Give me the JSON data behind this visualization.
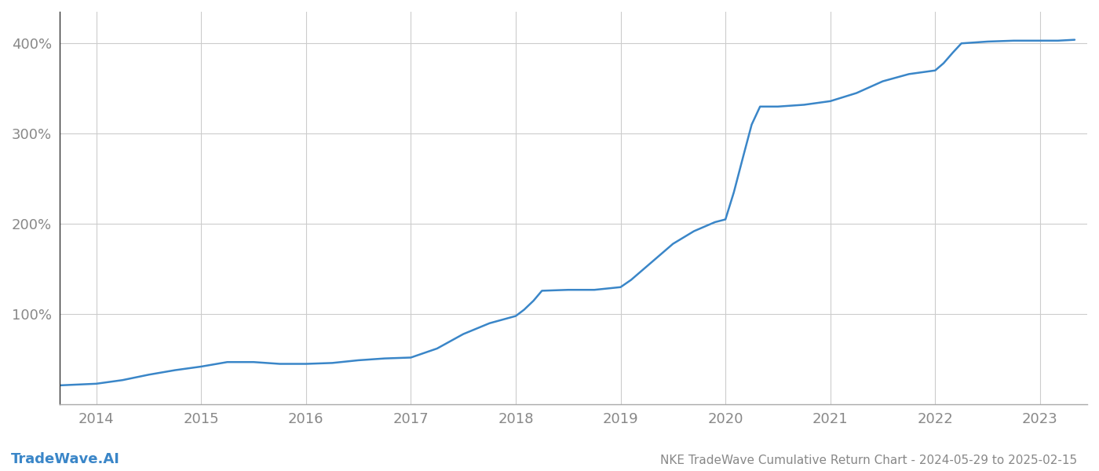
{
  "title": "NKE TradeWave Cumulative Return Chart - 2024-05-29 to 2025-02-15",
  "watermark": "TradeWave.AI",
  "line_color": "#3a86c8",
  "line_width": 1.8,
  "background_color": "#ffffff",
  "grid_color": "#cccccc",
  "x_years": [
    2014,
    2015,
    2016,
    2017,
    2018,
    2019,
    2020,
    2021,
    2022,
    2023
  ],
  "y_ticks": [
    100,
    200,
    300,
    400
  ],
  "y_tick_labels": [
    "100%",
    "200%",
    "300%",
    "400%"
  ],
  "xlim_start": 2013.65,
  "xlim_end": 2023.45,
  "ylim_bottom": 0,
  "ylim_top": 435,
  "data_x": [
    2013.42,
    2014.0,
    2014.25,
    2014.5,
    2014.75,
    2015.0,
    2015.25,
    2015.5,
    2015.75,
    2016.0,
    2016.25,
    2016.5,
    2016.75,
    2017.0,
    2017.25,
    2017.5,
    2017.75,
    2018.0,
    2018.08,
    2018.17,
    2018.25,
    2018.5,
    2018.75,
    2019.0,
    2019.1,
    2019.2,
    2019.3,
    2019.4,
    2019.5,
    2019.6,
    2019.7,
    2019.8,
    2019.9,
    2020.0,
    2020.08,
    2020.17,
    2020.25,
    2020.33,
    2020.5,
    2020.75,
    2021.0,
    2021.25,
    2021.5,
    2021.75,
    2022.0,
    2022.08,
    2022.17,
    2022.25,
    2022.5,
    2022.75,
    2023.0,
    2023.17,
    2023.33
  ],
  "data_y": [
    20,
    23,
    27,
    33,
    38,
    42,
    47,
    47,
    45,
    45,
    46,
    49,
    51,
    52,
    62,
    78,
    90,
    98,
    105,
    115,
    126,
    127,
    127,
    130,
    138,
    148,
    158,
    168,
    178,
    185,
    192,
    197,
    202,
    205,
    235,
    275,
    310,
    330,
    330,
    332,
    336,
    345,
    358,
    366,
    370,
    378,
    390,
    400,
    402,
    403,
    403,
    403,
    404
  ],
  "tick_fontsize": 13,
  "watermark_fontsize": 13,
  "title_fontsize": 11
}
